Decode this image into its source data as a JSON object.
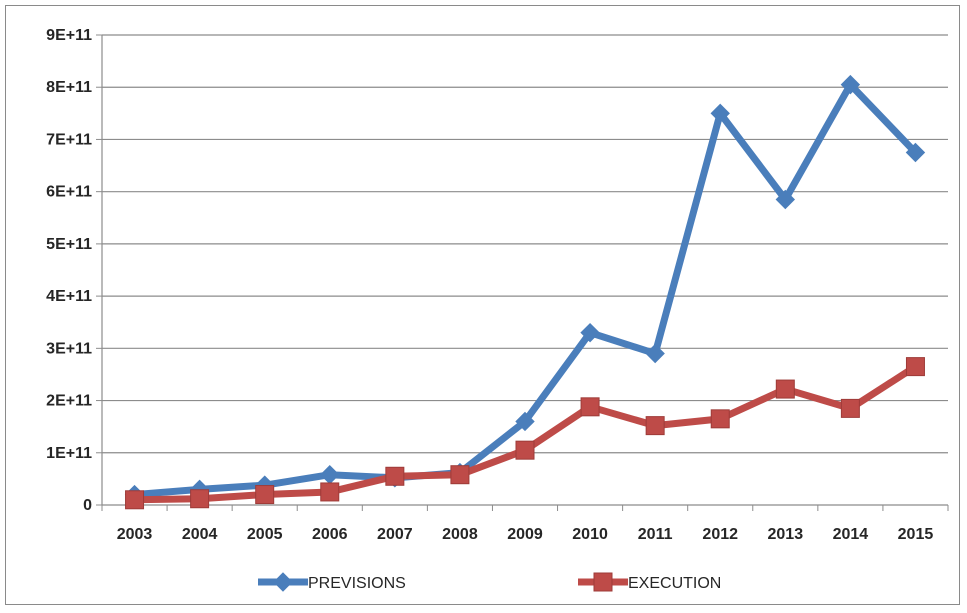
{
  "chart_data": {
    "type": "line",
    "title": "",
    "xlabel": "",
    "ylabel": "",
    "x": [
      "2003",
      "2004",
      "2005",
      "2006",
      "2007",
      "2008",
      "2009",
      "2010",
      "2011",
      "2012",
      "2013",
      "2014",
      "2015"
    ],
    "ylim": [
      0,
      900000000000
    ],
    "y_ticks": [
      0,
      100000000000,
      200000000000,
      300000000000,
      400000000000,
      500000000000,
      600000000000,
      700000000000,
      800000000000,
      900000000000
    ],
    "y_tick_labels": [
      "0",
      "1E+11",
      "2E+11",
      "3E+11",
      "4E+11",
      "5E+11",
      "6E+11",
      "7E+11",
      "8E+11",
      "9E+11"
    ],
    "grid": true,
    "legend_position": "bottom",
    "series": [
      {
        "name": "PREVISIONS",
        "color": "#4a7ebb",
        "marker": "diamond",
        "values": [
          20000000000,
          30000000000,
          38000000000,
          58000000000,
          52000000000,
          62000000000,
          160000000000,
          330000000000,
          290000000000,
          750000000000,
          585000000000,
          805000000000,
          675000000000
        ]
      },
      {
        "name": "EXECUTION",
        "color": "#be4b48",
        "marker": "square",
        "values": [
          10000000000,
          12000000000,
          20000000000,
          25000000000,
          55000000000,
          58000000000,
          105000000000,
          188000000000,
          152000000000,
          165000000000,
          222000000000,
          185000000000,
          265000000000
        ]
      }
    ]
  }
}
